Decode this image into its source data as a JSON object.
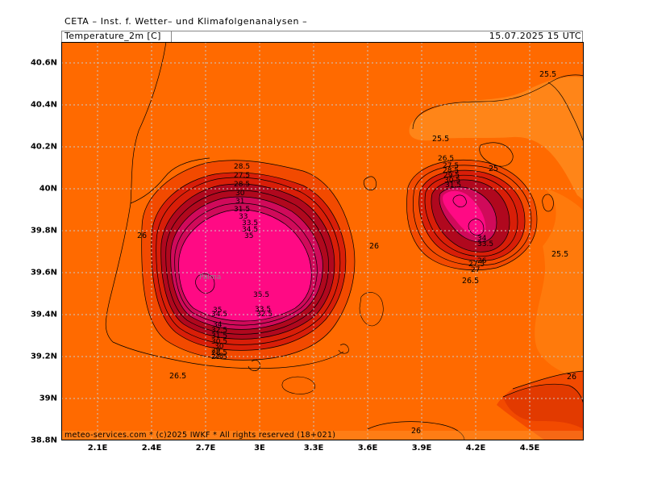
{
  "header": {
    "title": "CETA – Inst. f. Wetter– und Klimafolgenanalysen –",
    "variable": "Temperature_2m [C]",
    "valid_time": "15.07.2025 15 UTC"
  },
  "map": {
    "place_label": "Palma",
    "copyright": "meteo-services.com * (c)2025 IWKF * All rights reserved (18+021)",
    "lat_ticks": [
      "40.6N",
      "40.4N",
      "40.2N",
      "40N",
      "39.8N",
      "39.6N",
      "39.4N",
      "39.2N",
      "39N",
      "38.8N"
    ],
    "lon_ticks": [
      "2.1E",
      "2.4E",
      "2.7E",
      "3E",
      "3.3E",
      "3.6E",
      "3.9E",
      "4.2E",
      "4.5E"
    ],
    "colors": {
      "sea_26": "#ff6a00",
      "sea_25_5": "#ff7f10",
      "mid_27": "#f24a00",
      "warm_29": "#d81e08",
      "hot_31": "#b0081e",
      "hot_33": "#d00a5a",
      "hot_35": "#ff0a84",
      "grid": "#c8c8c8"
    },
    "contour_labels": {
      "west_26": "26",
      "island_26_e": "26",
      "south_26_5": "26.5",
      "bottom_26": "26",
      "sw_26": "26",
      "nw_25_5": "25.5",
      "ne_25_5": "25.5",
      "menorca_25": "25",
      "east_25_5": "25.5",
      "mallorca_28_5": "28.5",
      "mallorca_27_5": "27.5",
      "mallorca_28_5_b": "28.5",
      "mallorca_30": "30",
      "mallorca_31": "31",
      "mallorca_31_5": "31.5",
      "mallorca_33": "33",
      "mallorca_33_5": "33.5",
      "mallorca_34_5": "34.5",
      "mallorca_35": "35",
      "mallorca_35_5": "35.5",
      "mallorca_35_s": "35",
      "mallorca_34_5_s": "34.5",
      "mallorca_33_5_s": "33.5",
      "mallorca_32_5_s": "32.5",
      "mallorca_34_s": "34",
      "mallorca_32_5_ss": "32.5",
      "mallorca_31_5_s": "31.5",
      "mallorca_30_5_s": "30.5",
      "mallorca_30_s": "30",
      "mallorca_29_s": "29",
      "mallorca_28_5_s": "28.5",
      "mallorca_28_s": "28",
      "mallorca_27_5_s": "27.5",
      "menorca_26_5": "26.5",
      "menorca_27_5": "27.5",
      "menorca_28_5": "28.5",
      "menorca_29_5": "29.5",
      "menorca_30_5": "30.5",
      "menorca_31_5": "31.5",
      "menorca_34": "34",
      "menorca_33_5": "33.5",
      "menorca_27_5_s": "27.5",
      "menorca_26_s": "26",
      "menorca_27_s": "27",
      "menorca_26_5_s": "26.5"
    }
  }
}
